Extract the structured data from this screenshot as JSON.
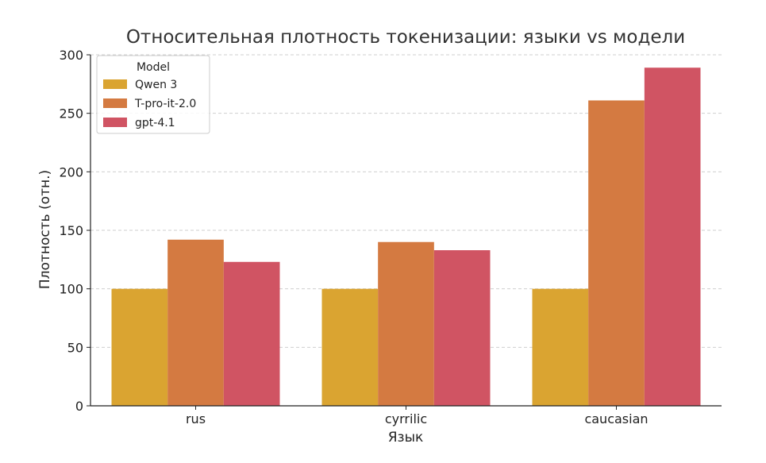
{
  "chart_data": {
    "type": "bar",
    "title": "Относительная плотность токенизации: языки vs модели",
    "xlabel": "Язык",
    "ylabel": "Плотность (отн.)",
    "categories": [
      "rus",
      "cyrrilic",
      "caucasian"
    ],
    "ylim": [
      0,
      300
    ],
    "yticks": [
      0,
      50,
      100,
      150,
      200,
      250,
      300
    ],
    "grid": true,
    "legend": {
      "title": "Model",
      "placement": "top-left"
    },
    "series": [
      {
        "name": "Qwen 3",
        "color": "#DAA431",
        "values": [
          100,
          100,
          100
        ]
      },
      {
        "name": "T-pro-it-2.0",
        "color": "#D47A41",
        "values": [
          142,
          140,
          261
        ]
      },
      {
        "name": "gpt-4.1",
        "color": "#D05463",
        "values": [
          123,
          133,
          289
        ]
      }
    ]
  }
}
